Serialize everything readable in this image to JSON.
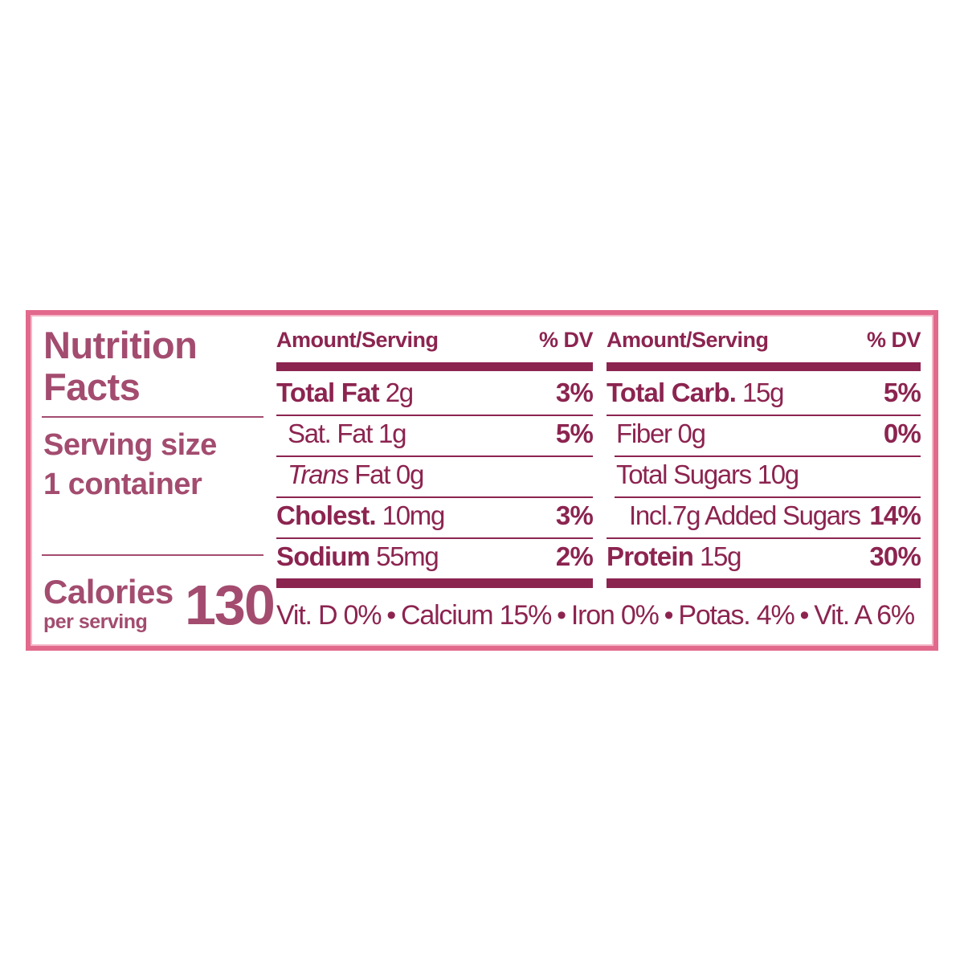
{
  "label": {
    "title": [
      "Nutrition",
      "Facts"
    ],
    "serving_size_label": "Serving size",
    "serving_size_value": "1 container",
    "calories_label": "Calories",
    "calories_sub": "per serving",
    "calories_value": "130",
    "columns": [
      {
        "header_amount": "Amount/Serving",
        "header_dv": "% DV",
        "rows": [
          {
            "name": "Total Fat",
            "amount": "2g",
            "dv": "3%"
          },
          {
            "name": "Sat. Fat 1g",
            "dv": "5%"
          },
          {
            "name_italic": "Trans",
            "name": "Fat 0g"
          },
          {
            "name": "Cholest.",
            "amount": "10mg",
            "dv": "3%"
          },
          {
            "name": "Sodium",
            "amount": "55mg",
            "dv": "2%"
          }
        ]
      },
      {
        "header_amount": "Amount/Serving",
        "header_dv": "% DV",
        "rows": [
          {
            "name": "Total Carb.",
            "amount": "15g",
            "dv": "5%"
          },
          {
            "name": "Fiber 0g",
            "dv": "0%"
          },
          {
            "name": "Total Sugars 10g"
          },
          {
            "name": "Incl.7g Added Sugars",
            "dv": "14%"
          },
          {
            "name": "Protein",
            "amount": "15g",
            "dv": "30%"
          }
        ]
      }
    ],
    "vitamins": [
      "Vit. D 0%",
      "Calcium 15%",
      "Iron 0%",
      "Potas. 4%",
      "Vit. A 6%"
    ],
    "separator": "•"
  }
}
